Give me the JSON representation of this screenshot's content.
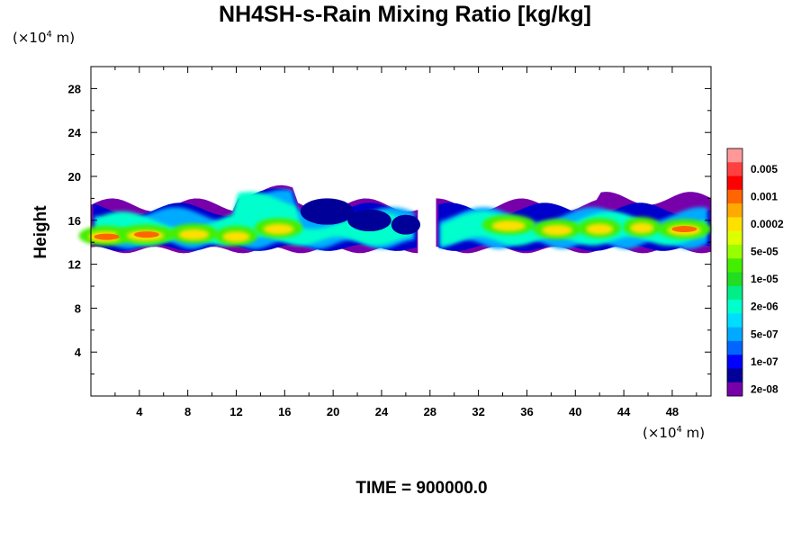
{
  "chart_data": {
    "type": "heatmap",
    "title": "NH4SH-s-Rain Mixing Ratio [kg/kg]",
    "ylabel": "Height",
    "xlabel": "",
    "x_unit": "(×10⁴ m)",
    "y_unit": "(×10⁴ m)",
    "x_ticks": [
      4,
      8,
      12,
      16,
      20,
      24,
      28,
      32,
      36,
      40,
      44,
      48
    ],
    "y_ticks": [
      4,
      8,
      12,
      16,
      20,
      24,
      28
    ],
    "xlim": [
      0,
      51.2
    ],
    "ylim": [
      0,
      30
    ],
    "colorbar": {
      "labels": [
        "0.005",
        "0.001",
        "0.0002",
        "5e-05",
        "1e-05",
        "2e-06",
        "5e-07",
        "1e-07",
        "2e-08"
      ],
      "colors": [
        "#ff9999",
        "#ff4040",
        "#ff0000",
        "#ff6600",
        "#ffaa00",
        "#ffe000",
        "#ddff00",
        "#99ff00",
        "#44ee00",
        "#22dd22",
        "#00ee88",
        "#00ffcc",
        "#00ddff",
        "#00aaff",
        "#0066ff",
        "#0000ff",
        "#000099",
        "#7700aa"
      ]
    },
    "layer": {
      "description": "cloud band of mixing ratio between heights ~13 and ~19",
      "segments": [
        {
          "x0": 0.0,
          "x1": 27.0
        },
        {
          "x0": 28.5,
          "x1": 51.2
        }
      ],
      "max_region_note": ""
    }
  },
  "footer": {
    "time_label": "TIME = 900000.0"
  }
}
